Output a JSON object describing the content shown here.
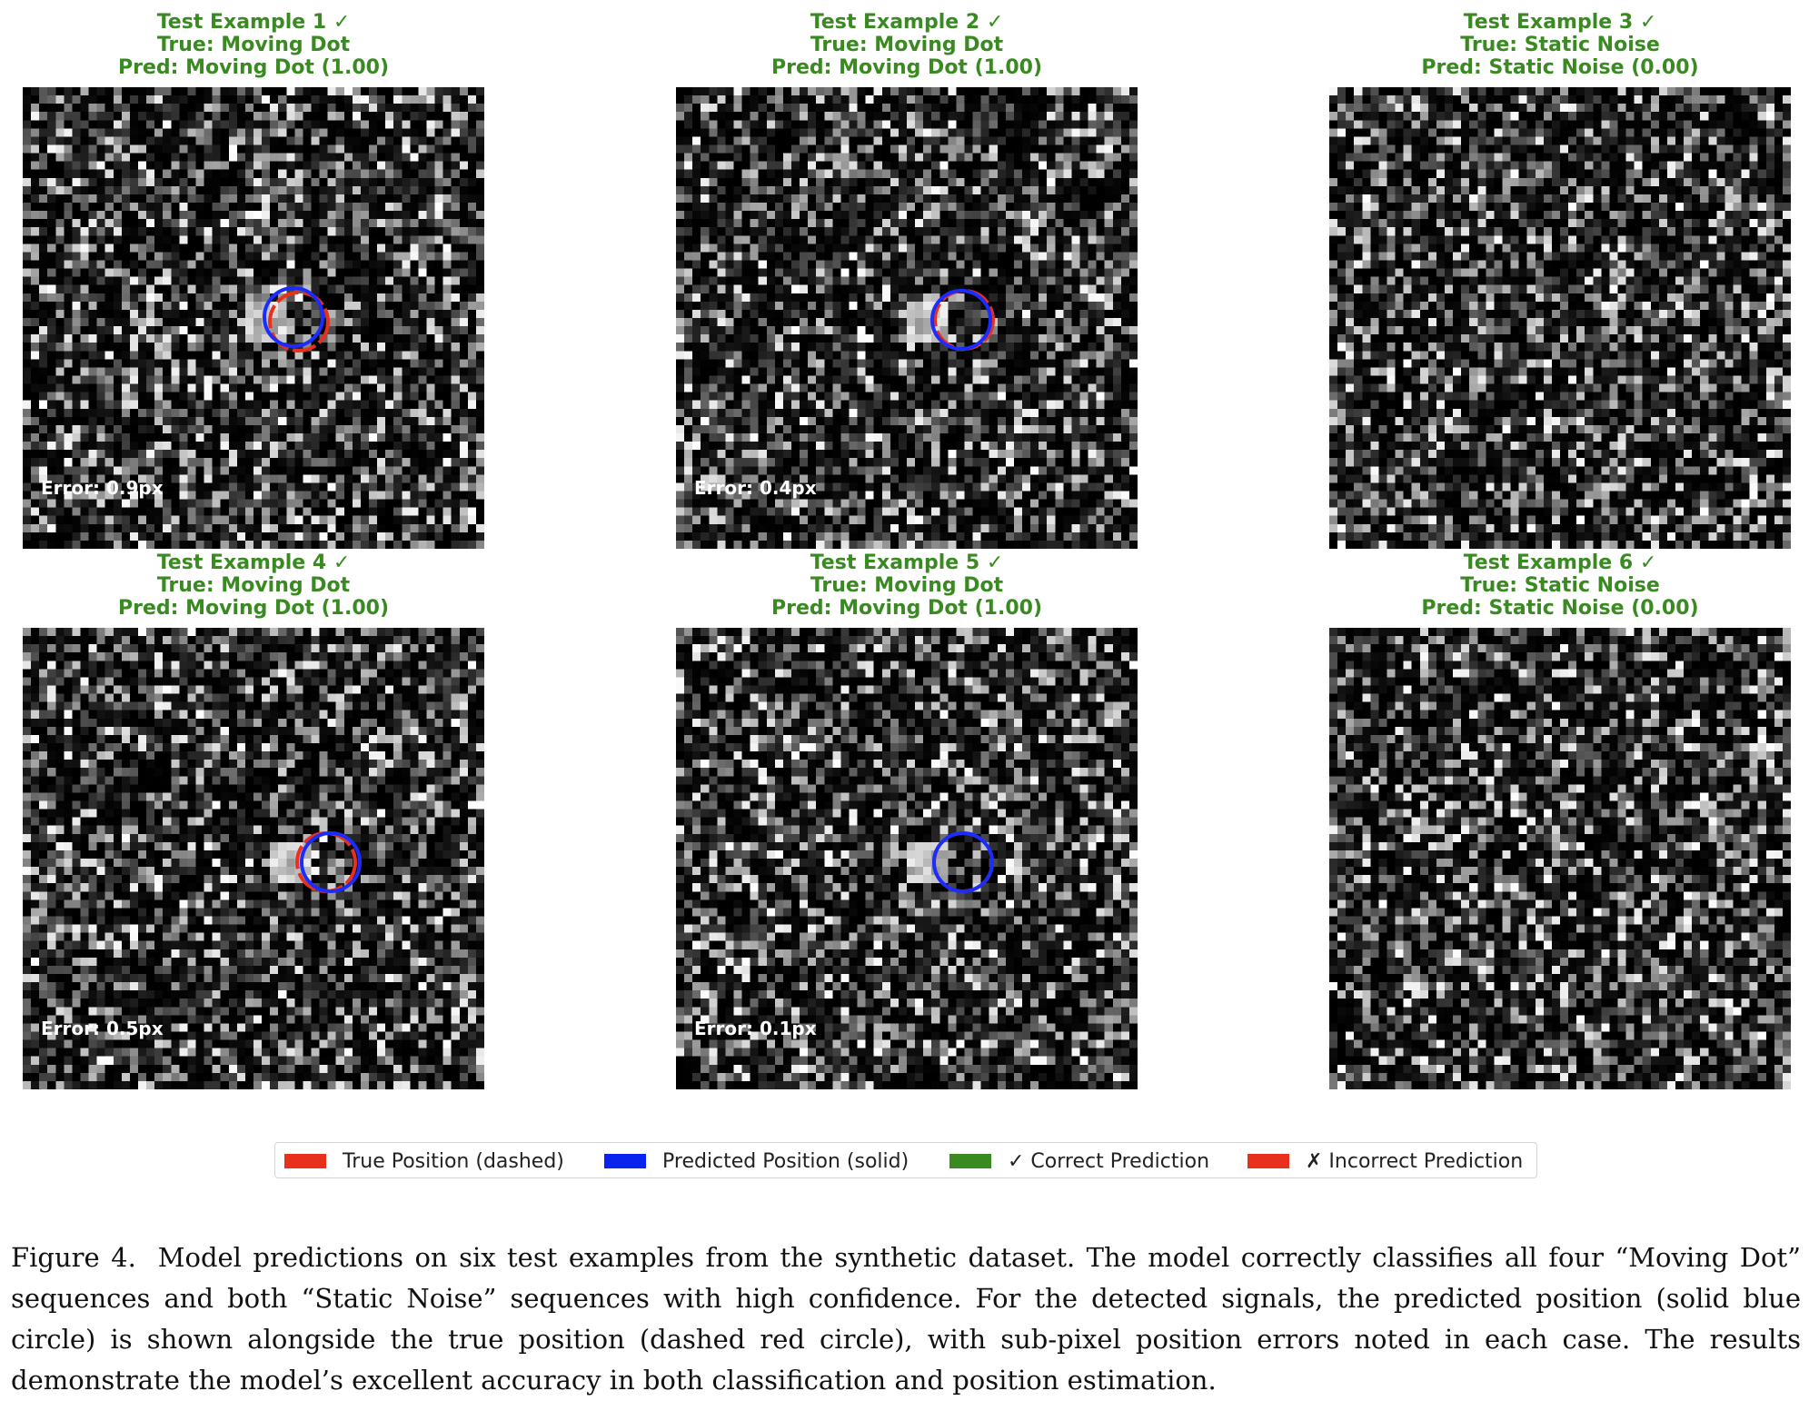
{
  "panels": [
    {
      "title": "Test Example 1 ✓",
      "true_label": "True: Moving Dot",
      "pred_label": "Pred: Moving Dot (1.00)",
      "error": "Error: 0.9px",
      "has_dot": true
    },
    {
      "title": "Test Example 2 ✓",
      "true_label": "True: Moving Dot",
      "pred_label": "Pred: Moving Dot (1.00)",
      "error": "Error: 0.4px",
      "has_dot": true
    },
    {
      "title": "Test Example 3 ✓",
      "true_label": "True: Static Noise",
      "pred_label": "Pred: Static Noise (0.00)",
      "error": "",
      "has_dot": false
    },
    {
      "title": "Test Example 4 ✓",
      "true_label": "True: Moving Dot",
      "pred_label": "Pred: Moving Dot (1.00)",
      "error": "Error: 0.5px",
      "has_dot": true
    },
    {
      "title": "Test Example 5 ✓",
      "true_label": "True: Moving Dot",
      "pred_label": "Pred: Moving Dot (1.00)",
      "error": "Error: 0.1px",
      "has_dot": true
    },
    {
      "title": "Test Example 6 ✓",
      "true_label": "True: Static Noise",
      "pred_label": "Pred: Static Noise (0.00)",
      "error": "",
      "has_dot": false
    }
  ],
  "legend": [
    {
      "label": "True Position (dashed)",
      "color": "#e8311c"
    },
    {
      "label": "Predicted Position (solid)",
      "color": "#0a24f0"
    },
    {
      "label": "✓ Correct Prediction",
      "color": "#3a8a22"
    },
    {
      "label": "✗ Incorrect Prediction",
      "color": "#e8311c"
    }
  ],
  "colors": {
    "title_green": "#3a8a22",
    "true_circle": "#e8311c",
    "pred_circle": "#1a2cff"
  },
  "caption": {
    "label": "Figure 4.",
    "text": "Model predictions on six test examples from the synthetic dataset. The model correctly classifies all four “Moving Dot” sequences and both “Static Noise” sequences with high confidence. For the detected signals, the predicted position (solid blue circle) is shown alongside the true position (dashed red circle), with sub-pixel position errors noted in each case. The results demonstrate the model’s excellent accuracy in both classification and position estimation."
  }
}
